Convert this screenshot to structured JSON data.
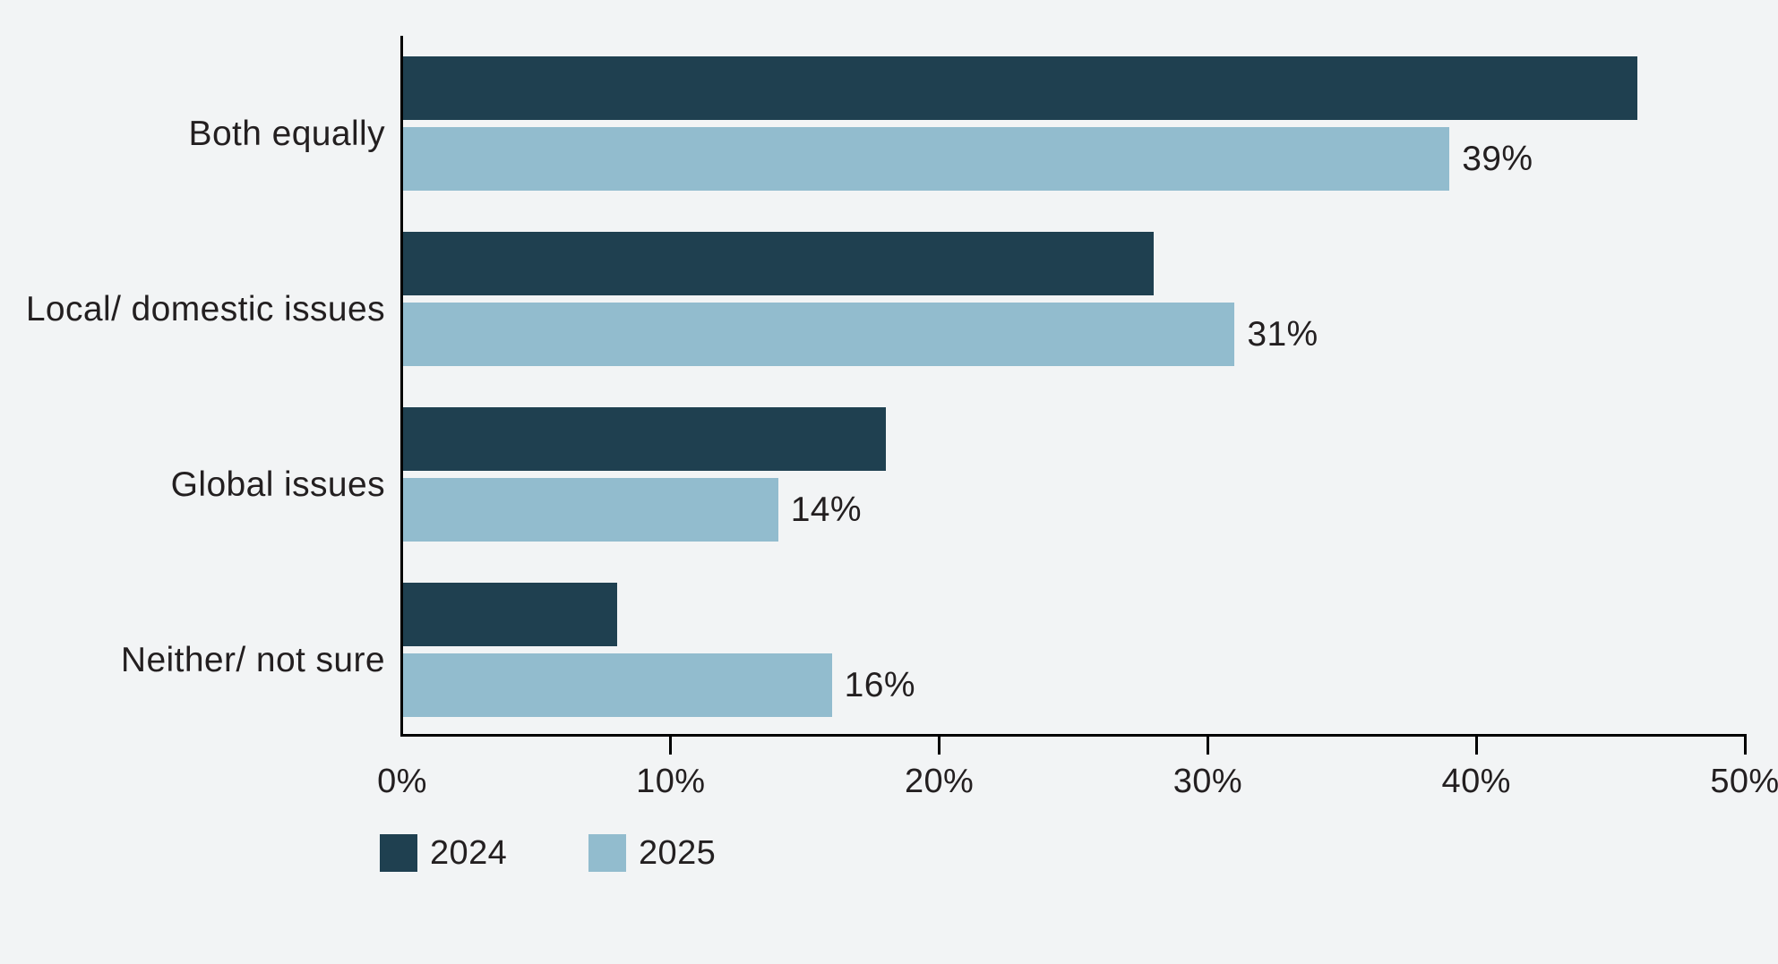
{
  "chart_data": {
    "type": "bar",
    "orientation": "horizontal",
    "title": "",
    "xlabel": "",
    "ylabel": "",
    "categories": [
      "Both equally",
      "Local/ domestic issues",
      "Global issues",
      "Neither/ not sure"
    ],
    "series": [
      {
        "name": "2024",
        "color": "#1F4050",
        "values": [
          46,
          28,
          18,
          8
        ],
        "show_value_labels": false,
        "value_labels": []
      },
      {
        "name": "2025",
        "color": "#92BCCE",
        "values": [
          39,
          31,
          14,
          16
        ],
        "show_value_labels": true,
        "value_labels": [
          "39%",
          "31%",
          "14%",
          "16%"
        ]
      }
    ],
    "x_axis": {
      "min": 0,
      "max": 50,
      "tick_step": 10,
      "tick_labels": [
        "0%",
        "10%",
        "20%",
        "30%",
        "40%",
        "50%"
      ]
    },
    "legend": {
      "position": "bottom-left",
      "entries": [
        "2024",
        "2025"
      ]
    },
    "grid": false,
    "colors": {
      "background": "#F2F4F5",
      "axis": "#000000",
      "text": "#231F20"
    }
  }
}
